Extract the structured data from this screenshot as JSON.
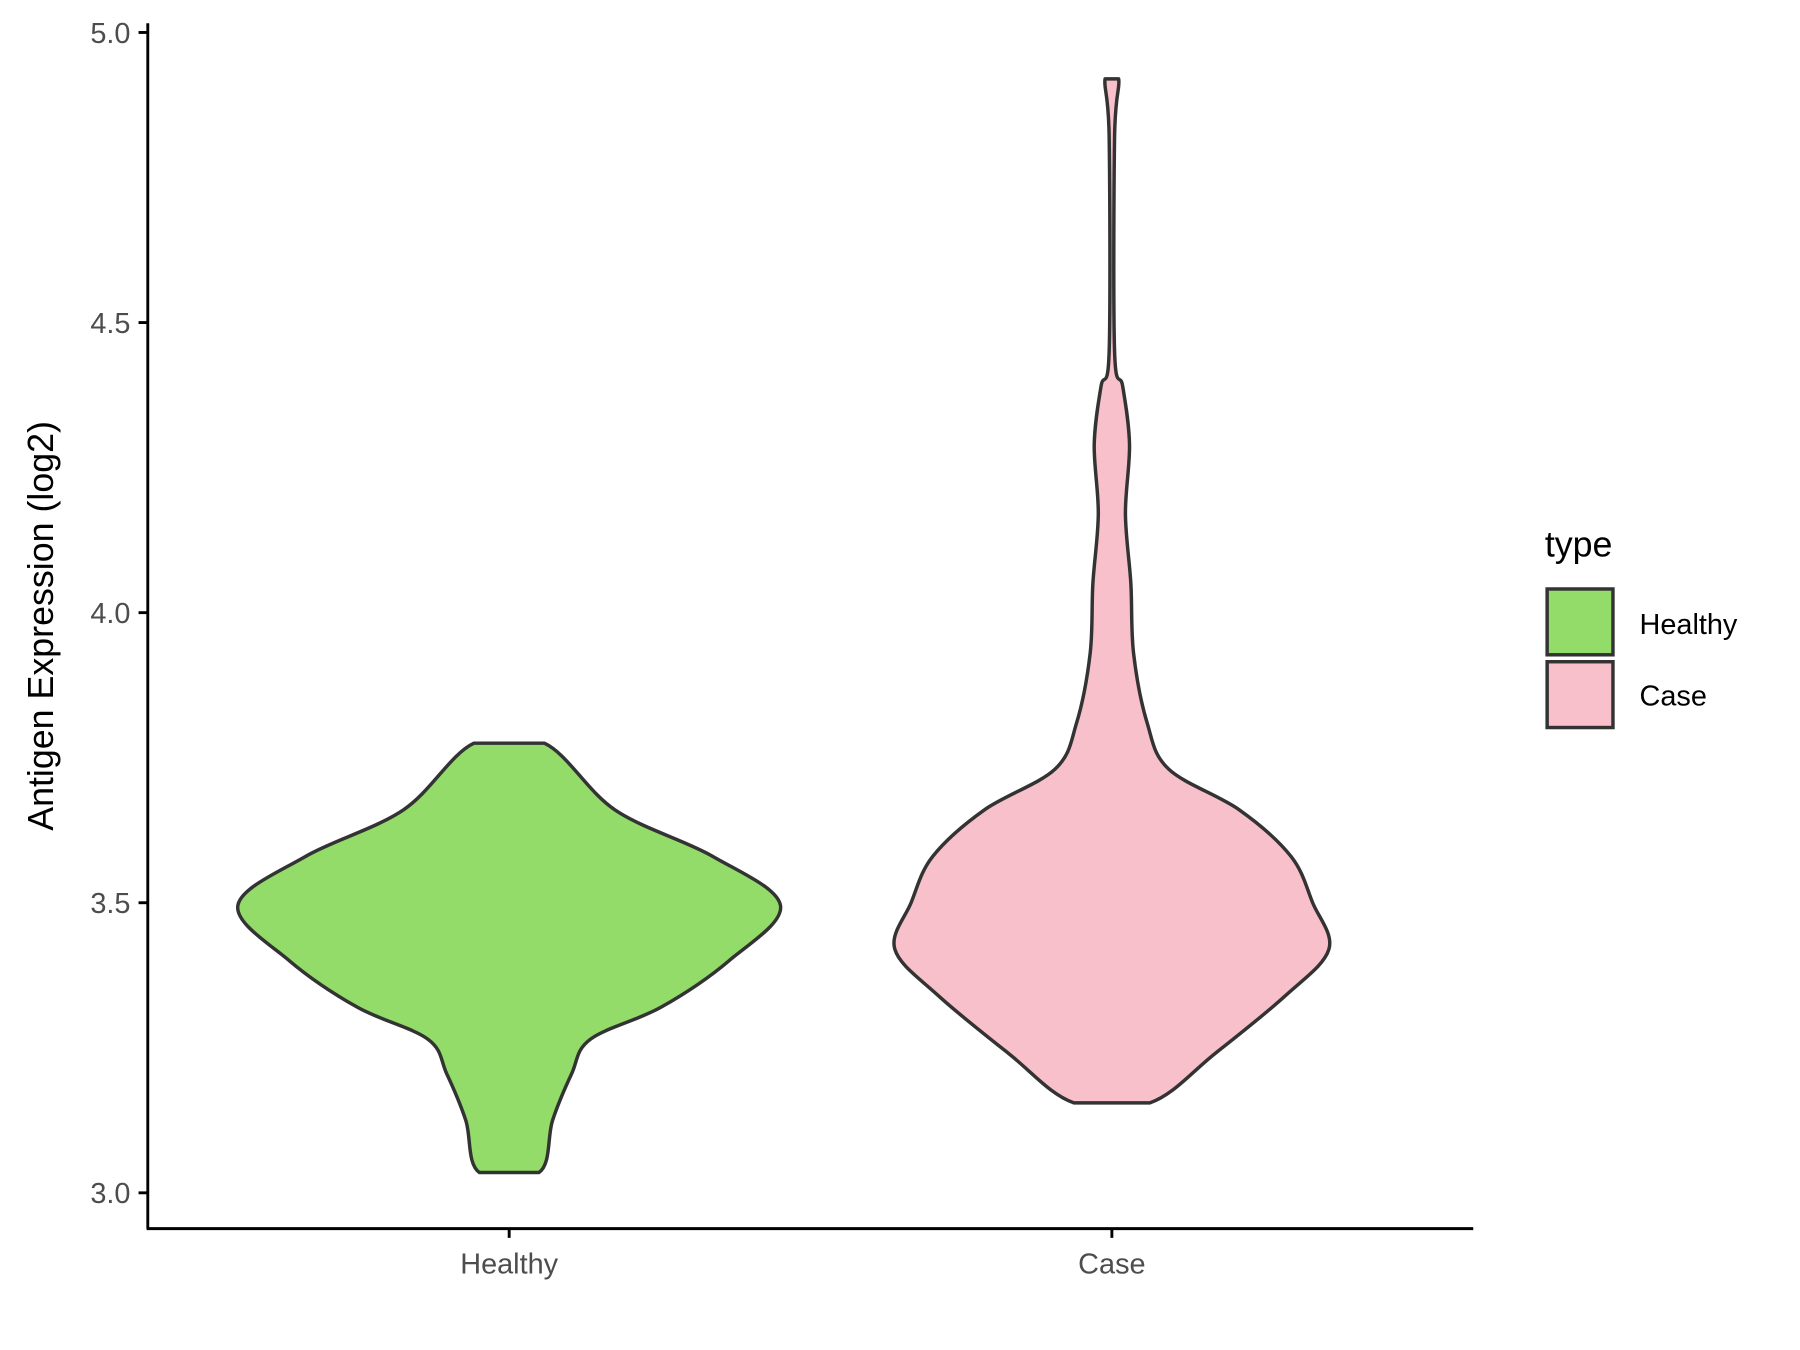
{
  "chart_data": {
    "type": "violin",
    "ylabel": "Antigen Expression (log2)",
    "xlabel": "",
    "categories": [
      "Healthy",
      "Case"
    ],
    "ylim": [
      2.94,
      5.02
    ],
    "yticks": [
      "3.0",
      "3.5",
      "4.0",
      "4.5",
      "5.0"
    ],
    "grid": false,
    "legend": {
      "title": "type",
      "placement": "right",
      "entries": [
        "Healthy",
        "Case"
      ]
    },
    "colors": {
      "Healthy": "#93dc6a",
      "Case": "#f8c0cb",
      "outline": "#333333"
    },
    "series": [
      {
        "name": "Healthy",
        "profile": [
          [
            3.035,
            0.11
          ],
          [
            3.125,
            0.16
          ],
          [
            3.205,
            0.23
          ],
          [
            3.265,
            0.3
          ],
          [
            3.32,
            0.56
          ],
          [
            3.4,
            0.81
          ],
          [
            3.495,
            1.0
          ],
          [
            3.58,
            0.75
          ],
          [
            3.66,
            0.39
          ],
          [
            3.775,
            0.13
          ]
        ]
      },
      {
        "name": "Case",
        "profile": [
          [
            3.155,
            0.14
          ],
          [
            3.24,
            0.38
          ],
          [
            3.34,
            0.64
          ],
          [
            3.42,
            0.8
          ],
          [
            3.5,
            0.74
          ],
          [
            3.58,
            0.66
          ],
          [
            3.66,
            0.47
          ],
          [
            3.73,
            0.21
          ],
          [
            3.81,
            0.13
          ],
          [
            3.93,
            0.08
          ],
          [
            4.05,
            0.07
          ],
          [
            4.17,
            0.05
          ],
          [
            4.29,
            0.065
          ],
          [
            4.39,
            0.04
          ],
          [
            4.45,
            0.01
          ],
          [
            4.82,
            0.01
          ],
          [
            4.92,
            0.025
          ]
        ]
      }
    ]
  }
}
